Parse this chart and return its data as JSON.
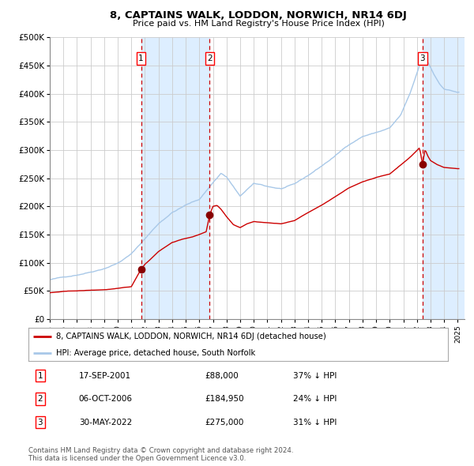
{
  "title": "8, CAPTAINS WALK, LODDON, NORWICH, NR14 6DJ",
  "subtitle": "Price paid vs. HM Land Registry's House Price Index (HPI)",
  "ylim": [
    0,
    500000
  ],
  "yticks": [
    0,
    50000,
    100000,
    150000,
    200000,
    250000,
    300000,
    350000,
    400000,
    450000,
    500000
  ],
  "xlim_start": 1995.0,
  "xlim_end": 2025.5,
  "hpi_color": "#a8c8e8",
  "price_color": "#cc0000",
  "sale_marker_color": "#880000",
  "vline_color": "#cc0000",
  "shade_color": "#ddeeff",
  "grid_color": "#cccccc",
  "sale1_date": 2001.71,
  "sale1_price": 88000,
  "sale2_date": 2006.76,
  "sale2_price": 184950,
  "sale3_date": 2022.41,
  "sale3_price": 275000,
  "legend_label_red": "8, CAPTAINS WALK, LODDON, NORWICH, NR14 6DJ (detached house)",
  "legend_label_blue": "HPI: Average price, detached house, South Norfolk",
  "table_rows": [
    {
      "num": "1",
      "date": "17-SEP-2001",
      "price": "£88,000",
      "hpi": "37% ↓ HPI"
    },
    {
      "num": "2",
      "date": "06-OCT-2006",
      "price": "£184,950",
      "hpi": "24% ↓ HPI"
    },
    {
      "num": "3",
      "date": "30-MAY-2022",
      "price": "£275,000",
      "hpi": "31% ↓ HPI"
    }
  ],
  "footer1": "Contains HM Land Registry data © Crown copyright and database right 2024.",
  "footer2": "This data is licensed under the Open Government Licence v3.0."
}
